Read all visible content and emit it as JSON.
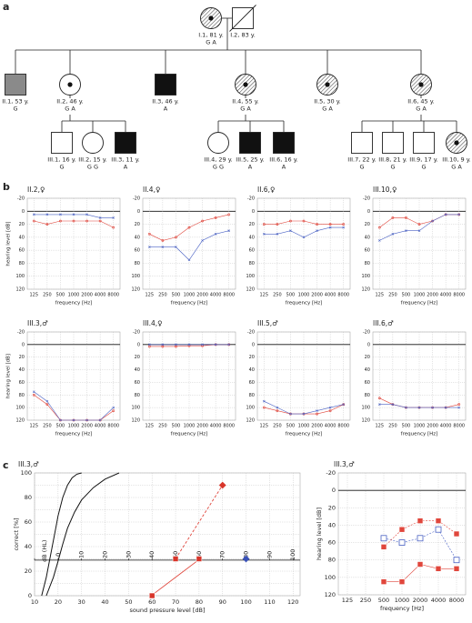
{
  "panels": [
    "a",
    "b",
    "c"
  ],
  "pedigree": {
    "individuals": [
      {
        "id": "I.1, 81 y.",
        "genotype": "G A"
      },
      {
        "id": "I.2, 83 y."
      },
      {
        "id": "II.1, 53 y.",
        "genotype": "G"
      },
      {
        "id": "II.2, 46 y.",
        "genotype": "G A"
      },
      {
        "id": "II.3, 46 y.",
        "genotype": "A"
      },
      {
        "id": "II.4, 55 y.",
        "genotype": "G A"
      },
      {
        "id": "II.5, 30 y.",
        "genotype": "G A"
      },
      {
        "id": "II.6, 45 y.",
        "genotype": "G A"
      },
      {
        "id": "III.1, 16 y.",
        "genotype": "G"
      },
      {
        "id": "III.2, 15 y.",
        "genotype": "G G"
      },
      {
        "id": "III.3, 11 y.",
        "genotype": "A"
      },
      {
        "id": "III.4, 29 y.",
        "genotype": "G G"
      },
      {
        "id": "III.5, 25 y.",
        "genotype": "A"
      },
      {
        "id": "III.6, 16 y.",
        "genotype": "A"
      },
      {
        "id": "III.7, 22 y.",
        "genotype": "G"
      },
      {
        "id": "III.8, 21 y.",
        "genotype": "G"
      },
      {
        "id": "III.9, 17 y.",
        "genotype": "G"
      },
      {
        "id": "III.10, 9 y.",
        "genotype": "G A"
      }
    ]
  },
  "chart_data": [
    {
      "type": "line",
      "title": "II.2,♀",
      "y_label": "hearing level [dB]",
      "x_label": "frequency [Hz]",
      "categories": [
        "125",
        "250",
        "500",
        "1000",
        "2000",
        "4000",
        "8000"
      ],
      "ylim": [
        -20,
        120
      ],
      "y_inverted": true,
      "yticks": [
        -20,
        0,
        20,
        40,
        60,
        80,
        100,
        120
      ],
      "grid": true,
      "series": [
        {
          "color": "#e0463c",
          "marker": "circle",
          "values": [
            15,
            20,
            15,
            15,
            15,
            15,
            25
          ]
        },
        {
          "color": "#4a62c4",
          "marker": "cross",
          "values": [
            5,
            5,
            5,
            5,
            5,
            10,
            10
          ]
        }
      ]
    },
    {
      "type": "line",
      "title": "II.4,♀",
      "x_label": "frequency [Hz]",
      "categories": [
        "125",
        "250",
        "500",
        "1000",
        "2000",
        "4000",
        "8000"
      ],
      "ylim": [
        -20,
        120
      ],
      "y_inverted": true,
      "yticks": [
        -20,
        0,
        20,
        40,
        60,
        80,
        100,
        120
      ],
      "grid": true,
      "series": [
        {
          "color": "#e0463c",
          "marker": "circle",
          "values": [
            35,
            45,
            40,
            25,
            15,
            10,
            5
          ]
        },
        {
          "color": "#4a62c4",
          "marker": "cross",
          "values": [
            55,
            55,
            55,
            75,
            45,
            35,
            30
          ]
        }
      ]
    },
    {
      "type": "line",
      "title": "II.6,♀",
      "x_label": "frequency [Hz]",
      "categories": [
        "125",
        "250",
        "500",
        "1000",
        "2000",
        "4000",
        "8000"
      ],
      "ylim": [
        -20,
        120
      ],
      "y_inverted": true,
      "yticks": [
        -20,
        0,
        20,
        40,
        60,
        80,
        100,
        120
      ],
      "grid": true,
      "series": [
        {
          "color": "#e0463c",
          "marker": "circle",
          "values": [
            20,
            20,
            15,
            15,
            20,
            20,
            20
          ]
        },
        {
          "color": "#4a62c4",
          "marker": "cross",
          "values": [
            35,
            35,
            30,
            40,
            30,
            25,
            25
          ]
        }
      ]
    },
    {
      "type": "line",
      "title": "III.10,♀",
      "x_label": "frequency [Hz]",
      "categories": [
        "125",
        "250",
        "500",
        "1000",
        "2000",
        "4000",
        "8000"
      ],
      "ylim": [
        -20,
        120
      ],
      "y_inverted": true,
      "yticks": [
        -20,
        0,
        20,
        40,
        60,
        80,
        100,
        120
      ],
      "grid": true,
      "series": [
        {
          "color": "#e0463c",
          "marker": "circle",
          "values": [
            25,
            10,
            10,
            20,
            15,
            5,
            5
          ]
        },
        {
          "color": "#4a62c4",
          "marker": "cross",
          "values": [
            45,
            35,
            30,
            30,
            15,
            5,
            5
          ]
        }
      ]
    },
    {
      "type": "line",
      "title": "III.3,♂",
      "y_label": "hearing level [dB]",
      "x_label": "frequency [Hz]",
      "categories": [
        "125",
        "250",
        "500",
        "1000",
        "2000",
        "4000",
        "8000"
      ],
      "ylim": [
        -20,
        120
      ],
      "y_inverted": true,
      "yticks": [
        -20,
        0,
        20,
        40,
        60,
        80,
        100,
        120
      ],
      "grid": true,
      "series": [
        {
          "color": "#e0463c",
          "marker": "circle",
          "values": [
            80,
            95,
            120,
            120,
            120,
            120,
            105
          ]
        },
        {
          "color": "#4a62c4",
          "marker": "cross",
          "values": [
            75,
            90,
            120,
            120,
            120,
            120,
            100
          ]
        }
      ]
    },
    {
      "type": "line",
      "title": "III.4,♀",
      "x_label": "frequency [Hz]",
      "categories": [
        "125",
        "250",
        "500",
        "1000",
        "2000",
        "4000",
        "8000"
      ],
      "ylim": [
        -20,
        120
      ],
      "y_inverted": true,
      "yticks": [
        -20,
        0,
        20,
        40,
        60,
        80,
        100,
        120
      ],
      "grid": true,
      "series": [
        {
          "color": "#e0463c",
          "marker": "circle",
          "values": [
            3,
            3,
            3,
            2,
            2,
            0,
            0
          ]
        },
        {
          "color": "#4a62c4",
          "marker": "cross",
          "values": [
            0,
            0,
            0,
            0,
            0,
            0,
            0
          ]
        }
      ]
    },
    {
      "type": "line",
      "title": "III.5,♂",
      "x_label": "frequency [Hz]",
      "categories": [
        "125",
        "250",
        "500",
        "1000",
        "2000",
        "4000",
        "8000"
      ],
      "ylim": [
        -20,
        120
      ],
      "y_inverted": true,
      "yticks": [
        -20,
        0,
        20,
        40,
        60,
        80,
        100,
        120
      ],
      "grid": true,
      "series": [
        {
          "color": "#e0463c",
          "marker": "circle",
          "values": [
            100,
            105,
            110,
            110,
            110,
            105,
            95
          ]
        },
        {
          "color": "#4a62c4",
          "marker": "cross",
          "values": [
            90,
            100,
            110,
            110,
            105,
            100,
            95
          ]
        }
      ]
    },
    {
      "type": "line",
      "title": "III.6,♂",
      "x_label": "frequency [Hz]",
      "categories": [
        "125",
        "250",
        "500",
        "1000",
        "2000",
        "4000",
        "8000"
      ],
      "ylim": [
        -20,
        120
      ],
      "y_inverted": true,
      "yticks": [
        -20,
        0,
        20,
        40,
        60,
        80,
        100,
        120
      ],
      "grid": true,
      "series": [
        {
          "color": "#e0463c",
          "marker": "circle",
          "values": [
            85,
            95,
            100,
            100,
            100,
            100,
            95
          ]
        },
        {
          "color": "#4a62c4",
          "marker": "cross",
          "values": [
            95,
            95,
            100,
            100,
            100,
            100,
            100
          ]
        }
      ]
    },
    {
      "type": "speech",
      "title": "III.3,♂",
      "x_label": "sound pressure level [dB]",
      "y_label": "correct [%]",
      "xlim": [
        10,
        123
      ],
      "xticks": [
        10,
        20,
        30,
        40,
        50,
        60,
        70,
        80,
        90,
        100,
        110,
        120
      ],
      "ylim": [
        0,
        100
      ],
      "yticks": [
        0,
        10,
        20,
        30,
        40,
        50,
        60,
        70,
        80,
        90,
        100
      ],
      "x2_label": "dB (HL)",
      "x2lim": [
        -10,
        103
      ],
      "x2ticks": [
        -10,
        0,
        10,
        20,
        30,
        40,
        50,
        60,
        70,
        80,
        90,
        100
      ],
      "grid": true,
      "series": [
        {
          "color": "#111111",
          "marker": "none",
          "x": [
            13,
            15,
            17,
            19,
            20,
            22,
            24,
            26,
            28,
            30
          ],
          "values": [
            0,
            15,
            35,
            55,
            65,
            80,
            90,
            96,
            99,
            100
          ]
        },
        {
          "color": "#111111",
          "marker": "none",
          "x": [
            15,
            18,
            20,
            22,
            24,
            27,
            30,
            35,
            40,
            46
          ],
          "values": [
            0,
            15,
            28,
            42,
            55,
            68,
            78,
            88,
            95,
            100
          ]
        },
        {
          "color": "#e0463c",
          "marker": "none",
          "x": [
            61,
            79
          ],
          "values": [
            2,
            28
          ]
        },
        {
          "color": "#e0463c",
          "marker": "none",
          "dash": true,
          "x": [
            70,
            90
          ],
          "values": [
            30,
            90
          ]
        },
        {
          "color": "#d8352a",
          "marker": "square",
          "line": false,
          "x": [
            60,
            70,
            80
          ],
          "values": [
            0,
            30,
            30
          ]
        },
        {
          "color": "#d8352a",
          "marker": "diamond",
          "line": false,
          "x": [
            90
          ],
          "values": [
            90
          ]
        },
        {
          "color": "#3a52b8",
          "marker": "diamond",
          "line": false,
          "x": [
            100
          ],
          "values": [
            30
          ]
        }
      ]
    },
    {
      "type": "line",
      "title": "III.3,♂",
      "y_label": "hearing level [dB]",
      "x_label": "frequency [Hz]",
      "categories": [
        "125",
        "250",
        "500",
        "1000",
        "2000",
        "4000",
        "8000"
      ],
      "ylim": [
        -20,
        120
      ],
      "y_inverted": true,
      "yticks": [
        -20,
        0,
        20,
        40,
        60,
        80,
        100,
        120
      ],
      "grid": true,
      "series": [
        {
          "color": "#4a62c4",
          "marker": "hollow-square",
          "dash": true,
          "values": [
            null,
            null,
            55,
            60,
            55,
            45,
            80
          ]
        },
        {
          "color": "#e0463c",
          "marker": "square",
          "dash": true,
          "values": [
            null,
            null,
            65,
            45,
            35,
            35,
            50
          ]
        },
        {
          "color": "#e0463c",
          "marker": "square",
          "values": [
            null,
            null,
            105,
            105,
            85,
            90,
            90
          ]
        }
      ]
    }
  ]
}
